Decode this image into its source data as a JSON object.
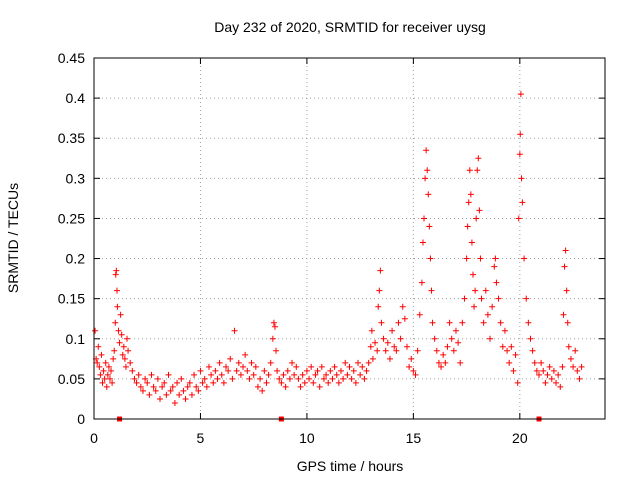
{
  "chart_data": {
    "type": "scatter",
    "title": "Day 232 of 2020, SRMTID for receiver uysg",
    "xlabel": "GPS time / hours",
    "ylabel": "SRMTID / TECUs",
    "xlim": [
      0,
      24
    ],
    "ylim": [
      0,
      0.45
    ],
    "xticks": [
      0,
      5,
      10,
      15,
      20
    ],
    "xtick_labels": [
      "0",
      "5",
      "10",
      "15",
      "20"
    ],
    "yticks": [
      0,
      0.05,
      0.1,
      0.15,
      0.2,
      0.25,
      0.3,
      0.35,
      0.4,
      0.45
    ],
    "ytick_labels": [
      "0",
      "0.05",
      "0.1",
      "0.15",
      "0.2",
      "0.25",
      "0.3",
      "0.35",
      "0.4",
      "0.45"
    ],
    "grid": true,
    "marker": "+",
    "color": "#ff0000",
    "series": [
      {
        "name": "SRMTID",
        "points": [
          [
            0.05,
            0.11
          ],
          [
            0.1,
            0.075
          ],
          [
            0.15,
            0.07
          ],
          [
            0.2,
            0.09
          ],
          [
            0.25,
            0.065
          ],
          [
            0.3,
            0.055
          ],
          [
            0.35,
            0.08
          ],
          [
            0.4,
            0.045
          ],
          [
            0.45,
            0.06
          ],
          [
            0.5,
            0.05
          ],
          [
            0.55,
            0.07
          ],
          [
            0.6,
            0.04
          ],
          [
            0.65,
            0.055
          ],
          [
            0.7,
            0.065
          ],
          [
            0.75,
            0.05
          ],
          [
            0.8,
            0.06
          ],
          [
            0.85,
            0.045
          ],
          [
            0.9,
            0.075
          ],
          [
            0.95,
            0.085
          ],
          [
            1.0,
            0.12
          ],
          [
            1.02,
            0.18
          ],
          [
            1.05,
            0.185
          ],
          [
            1.08,
            0.16
          ],
          [
            1.1,
            0.14
          ],
          [
            1.15,
            0.11
          ],
          [
            1.2,
            0.095
          ],
          [
            1.25,
            0.13
          ],
          [
            1.3,
            0.105
          ],
          [
            1.35,
            0.08
          ],
          [
            1.4,
            0.09
          ],
          [
            1.45,
            0.075
          ],
          [
            1.5,
            0.065
          ],
          [
            1.55,
            0.1
          ],
          [
            1.6,
            0.085
          ],
          [
            1.7,
            0.07
          ],
          [
            1.8,
            0.06
          ],
          [
            1.9,
            0.05
          ],
          [
            2.0,
            0.045
          ],
          [
            2.1,
            0.055
          ],
          [
            2.2,
            0.04
          ],
          [
            2.3,
            0.035
          ],
          [
            2.4,
            0.05
          ],
          [
            2.5,
            0.045
          ],
          [
            2.6,
            0.03
          ],
          [
            2.7,
            0.055
          ],
          [
            2.8,
            0.04
          ],
          [
            2.9,
            0.035
          ],
          [
            3.0,
            0.05
          ],
          [
            3.1,
            0.025
          ],
          [
            3.2,
            0.04
          ],
          [
            3.3,
            0.045
          ],
          [
            3.4,
            0.03
          ],
          [
            3.5,
            0.055
          ],
          [
            3.6,
            0.035
          ],
          [
            3.7,
            0.04
          ],
          [
            3.8,
            0.02
          ],
          [
            3.9,
            0.045
          ],
          [
            4.0,
            0.03
          ],
          [
            4.1,
            0.05
          ],
          [
            4.2,
            0.035
          ],
          [
            4.3,
            0.025
          ],
          [
            4.4,
            0.04
          ],
          [
            4.5,
            0.045
          ],
          [
            4.6,
            0.03
          ],
          [
            4.7,
            0.055
          ],
          [
            4.8,
            0.04
          ],
          [
            4.9,
            0.035
          ],
          [
            5.0,
            0.06
          ],
          [
            5.1,
            0.045
          ],
          [
            5.2,
            0.05
          ],
          [
            5.3,
            0.04
          ],
          [
            5.4,
            0.065
          ],
          [
            5.5,
            0.055
          ],
          [
            5.6,
            0.045
          ],
          [
            5.7,
            0.06
          ],
          [
            5.8,
            0.05
          ],
          [
            5.9,
            0.07
          ],
          [
            6.0,
            0.055
          ],
          [
            6.1,
            0.045
          ],
          [
            6.2,
            0.065
          ],
          [
            6.3,
            0.06
          ],
          [
            6.4,
            0.075
          ],
          [
            6.5,
            0.05
          ],
          [
            6.6,
            0.11
          ],
          [
            6.7,
            0.06
          ],
          [
            6.8,
            0.07
          ],
          [
            6.9,
            0.055
          ],
          [
            7.0,
            0.065
          ],
          [
            7.1,
            0.08
          ],
          [
            7.2,
            0.06
          ],
          [
            7.3,
            0.05
          ],
          [
            7.4,
            0.07
          ],
          [
            7.5,
            0.055
          ],
          [
            7.6,
            0.065
          ],
          [
            7.7,
            0.04
          ],
          [
            7.8,
            0.05
          ],
          [
            7.9,
            0.035
          ],
          [
            8.0,
            0.06
          ],
          [
            8.1,
            0.045
          ],
          [
            8.2,
            0.055
          ],
          [
            8.3,
            0.07
          ],
          [
            8.4,
            0.1
          ],
          [
            8.45,
            0.12
          ],
          [
            8.5,
            0.115
          ],
          [
            8.55,
            0.085
          ],
          [
            8.6,
            0.06
          ],
          [
            8.7,
            0.05
          ],
          [
            8.8,
            0.045
          ],
          [
            8.9,
            0.055
          ],
          [
            9.0,
            0.04
          ],
          [
            9.1,
            0.06
          ],
          [
            9.2,
            0.05
          ],
          [
            9.3,
            0.07
          ],
          [
            9.4,
            0.055
          ],
          [
            9.5,
            0.065
          ],
          [
            9.6,
            0.05
          ],
          [
            9.7,
            0.04
          ],
          [
            9.8,
            0.055
          ],
          [
            9.9,
            0.045
          ],
          [
            10.0,
            0.06
          ],
          [
            10.1,
            0.05
          ],
          [
            10.2,
            0.065
          ],
          [
            10.3,
            0.045
          ],
          [
            10.4,
            0.055
          ],
          [
            10.5,
            0.06
          ],
          [
            10.6,
            0.04
          ],
          [
            10.7,
            0.065
          ],
          [
            10.8,
            0.05
          ],
          [
            10.9,
            0.055
          ],
          [
            11.0,
            0.045
          ],
          [
            11.1,
            0.06
          ],
          [
            11.2,
            0.05
          ],
          [
            11.3,
            0.065
          ],
          [
            11.4,
            0.055
          ],
          [
            11.5,
            0.045
          ],
          [
            11.6,
            0.06
          ],
          [
            11.7,
            0.05
          ],
          [
            11.8,
            0.07
          ],
          [
            11.9,
            0.055
          ],
          [
            12.0,
            0.065
          ],
          [
            12.1,
            0.05
          ],
          [
            12.2,
            0.06
          ],
          [
            12.3,
            0.045
          ],
          [
            12.4,
            0.07
          ],
          [
            12.5,
            0.055
          ],
          [
            12.6,
            0.065
          ],
          [
            12.7,
            0.05
          ],
          [
            12.8,
            0.06
          ],
          [
            12.9,
            0.07
          ],
          [
            13.0,
            0.09
          ],
          [
            13.05,
            0.11
          ],
          [
            13.1,
            0.075
          ],
          [
            13.2,
            0.095
          ],
          [
            13.3,
            0.085
          ],
          [
            13.35,
            0.14
          ],
          [
            13.4,
            0.16
          ],
          [
            13.45,
            0.185
          ],
          [
            13.5,
            0.12
          ],
          [
            13.6,
            0.1
          ],
          [
            13.7,
            0.085
          ],
          [
            13.8,
            0.095
          ],
          [
            13.9,
            0.075
          ],
          [
            14.0,
            0.11
          ],
          [
            14.1,
            0.09
          ],
          [
            14.2,
            0.085
          ],
          [
            14.3,
            0.12
          ],
          [
            14.4,
            0.1
          ],
          [
            14.5,
            0.14
          ],
          [
            14.6,
            0.125
          ],
          [
            14.7,
            0.09
          ],
          [
            14.8,
            0.065
          ],
          [
            14.9,
            0.075
          ],
          [
            15.0,
            0.06
          ],
          [
            15.1,
            0.055
          ],
          [
            15.2,
            0.085
          ],
          [
            15.3,
            0.13
          ],
          [
            15.4,
            0.17
          ],
          [
            15.45,
            0.22
          ],
          [
            15.5,
            0.25
          ],
          [
            15.55,
            0.3
          ],
          [
            15.6,
            0.335
          ],
          [
            15.65,
            0.31
          ],
          [
            15.7,
            0.28
          ],
          [
            15.75,
            0.24
          ],
          [
            15.8,
            0.2
          ],
          [
            15.85,
            0.16
          ],
          [
            15.9,
            0.12
          ],
          [
            16.0,
            0.1
          ],
          [
            16.1,
            0.085
          ],
          [
            16.2,
            0.07
          ],
          [
            16.3,
            0.065
          ],
          [
            16.4,
            0.08
          ],
          [
            16.5,
            0.07
          ],
          [
            16.6,
            0.09
          ],
          [
            16.7,
            0.12
          ],
          [
            16.8,
            0.1
          ],
          [
            16.9,
            0.085
          ],
          [
            17.0,
            0.11
          ],
          [
            17.1,
            0.095
          ],
          [
            17.2,
            0.07
          ],
          [
            17.3,
            0.12
          ],
          [
            17.4,
            0.15
          ],
          [
            17.5,
            0.2
          ],
          [
            17.55,
            0.24
          ],
          [
            17.6,
            0.27
          ],
          [
            17.65,
            0.31
          ],
          [
            17.7,
            0.28
          ],
          [
            17.75,
            0.22
          ],
          [
            17.8,
            0.18
          ],
          [
            17.85,
            0.14
          ],
          [
            17.9,
            0.16
          ],
          [
            17.95,
            0.25
          ],
          [
            18.0,
            0.31
          ],
          [
            18.05,
            0.325
          ],
          [
            18.1,
            0.26
          ],
          [
            18.15,
            0.2
          ],
          [
            18.2,
            0.15
          ],
          [
            18.3,
            0.12
          ],
          [
            18.4,
            0.16
          ],
          [
            18.5,
            0.13
          ],
          [
            18.6,
            0.1
          ],
          [
            18.7,
            0.14
          ],
          [
            18.8,
            0.19
          ],
          [
            18.85,
            0.2
          ],
          [
            18.9,
            0.17
          ],
          [
            19.0,
            0.15
          ],
          [
            19.1,
            0.12
          ],
          [
            19.2,
            0.09
          ],
          [
            19.3,
            0.11
          ],
          [
            19.4,
            0.085
          ],
          [
            19.5,
            0.07
          ],
          [
            19.6,
            0.09
          ],
          [
            19.7,
            0.06
          ],
          [
            19.8,
            0.08
          ],
          [
            19.9,
            0.045
          ],
          [
            19.95,
            0.25
          ],
          [
            20.0,
            0.33
          ],
          [
            20.02,
            0.355
          ],
          [
            20.05,
            0.405
          ],
          [
            20.08,
            0.3
          ],
          [
            20.12,
            0.27
          ],
          [
            20.2,
            0.2
          ],
          [
            20.3,
            0.15
          ],
          [
            20.4,
            0.12
          ],
          [
            20.5,
            0.1
          ],
          [
            20.6,
            0.085
          ],
          [
            20.7,
            0.07
          ],
          [
            20.8,
            0.06
          ],
          [
            20.9,
            0.055
          ],
          [
            21.0,
            0.07
          ],
          [
            21.1,
            0.06
          ],
          [
            21.2,
            0.045
          ],
          [
            21.3,
            0.055
          ],
          [
            21.4,
            0.065
          ],
          [
            21.5,
            0.05
          ],
          [
            21.6,
            0.06
          ],
          [
            21.7,
            0.045
          ],
          [
            21.8,
            0.055
          ],
          [
            21.9,
            0.04
          ],
          [
            22.0,
            0.065
          ],
          [
            22.05,
            0.13
          ],
          [
            22.1,
            0.19
          ],
          [
            22.15,
            0.21
          ],
          [
            22.2,
            0.16
          ],
          [
            22.25,
            0.12
          ],
          [
            22.3,
            0.09
          ],
          [
            22.4,
            0.075
          ],
          [
            22.5,
            0.065
          ],
          [
            22.6,
            0.085
          ],
          [
            22.7,
            0.06
          ],
          [
            22.8,
            0.05
          ],
          [
            22.9,
            0.065
          ]
        ]
      }
    ],
    "axis_markers_x": [
      1.2,
      8.8,
      20.9
    ]
  }
}
